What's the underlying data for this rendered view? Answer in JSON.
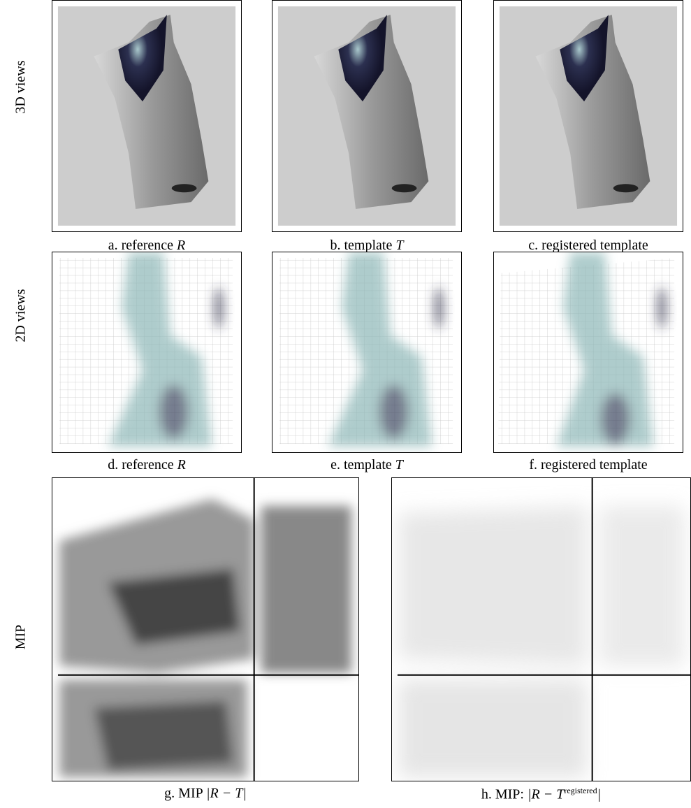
{
  "row_labels": [
    "3D views",
    "2D views",
    "MIP"
  ],
  "panels": [
    {
      "caption": {
        "prefix": "a. reference ",
        "math": "R"
      }
    },
    {
      "caption": {
        "prefix": "b. template ",
        "math": "T"
      }
    },
    {
      "caption": {
        "prefix": "c. registered template"
      }
    },
    {
      "caption": {
        "prefix": "d. reference ",
        "math": "R"
      }
    },
    {
      "caption": {
        "prefix": "e. template ",
        "math": "T"
      }
    },
    {
      "caption": {
        "prefix": "f. registered template"
      }
    },
    {
      "caption": {
        "prefix": "g. MIP ",
        "math": "|R − T|"
      }
    },
    {
      "caption": {
        "prefix": "h. MIP: ",
        "math": "|R − T",
        "sup": "registered",
        "suffix": "|"
      }
    }
  ]
}
